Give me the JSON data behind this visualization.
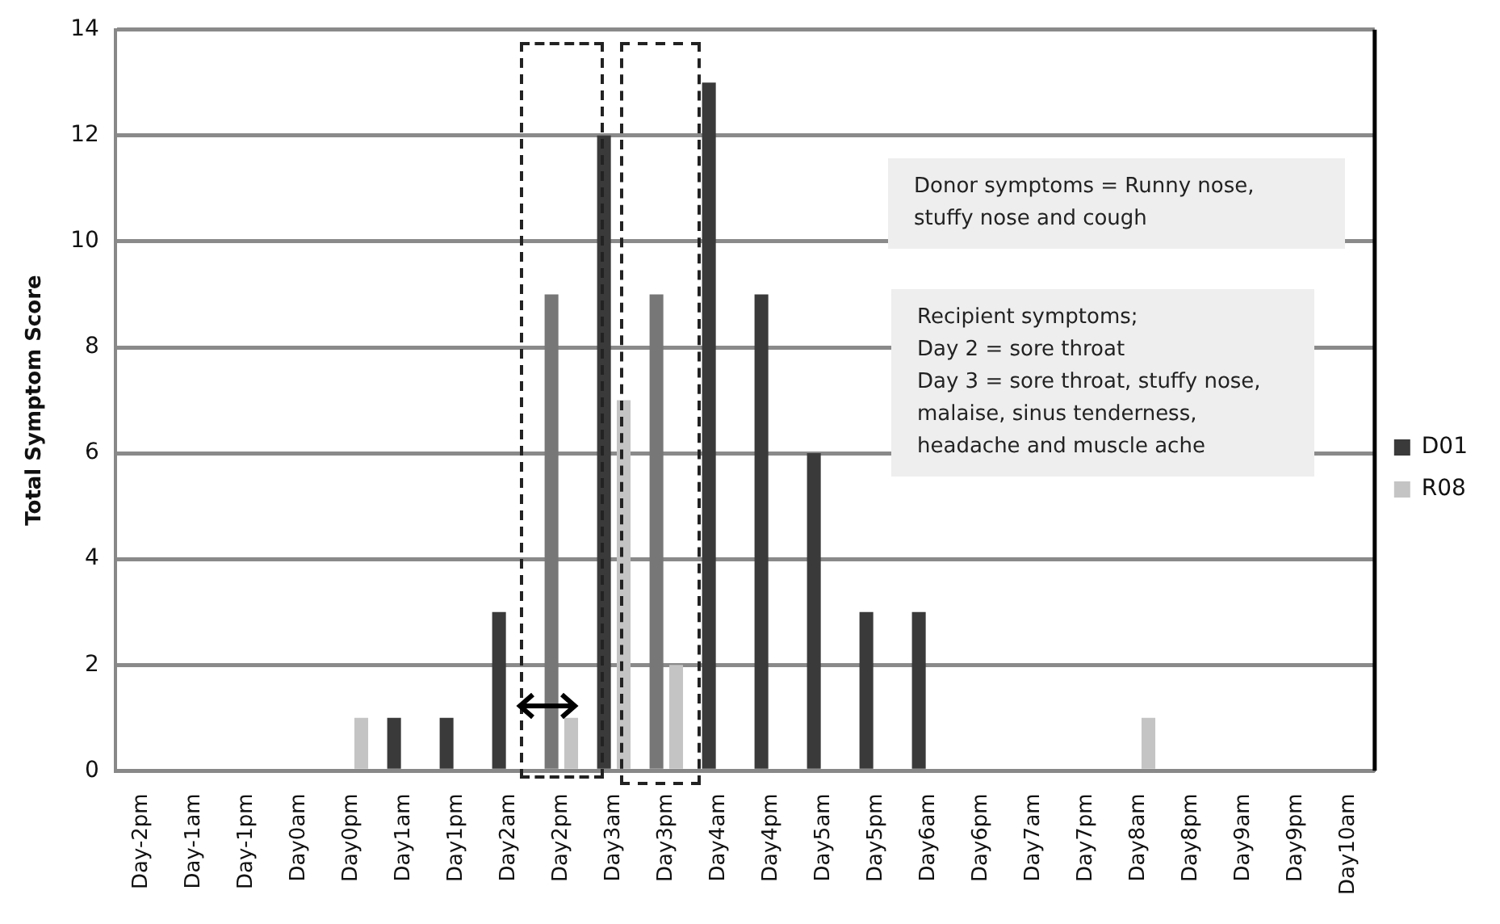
{
  "chart_data": {
    "type": "bar",
    "ylabel": "Total Symptom Score",
    "categories": [
      "Day-2pm",
      "Day-1am",
      "Day-1pm",
      "Day0am",
      "Day0pm",
      "Day1am",
      "Day1pm",
      "Day2am",
      "Day2pm",
      "Day3am",
      "Day3pm",
      "Day4am",
      "Day4pm",
      "Day5am",
      "Day5pm",
      "Day6am",
      "Day6pm",
      "Day7am",
      "Day7pm",
      "Day8am",
      "Day8pm",
      "Day9am",
      "Day9pm",
      "Day10am"
    ],
    "series": [
      {
        "name": "D01",
        "color": "#3a3a3a",
        "colors": [
          "#3a3a3a",
          "#3a3a3a",
          "#3a3a3a",
          "#3a3a3a",
          "#3a3a3a",
          "#3a3a3a",
          "#3a3a3a",
          "#3a3a3a",
          "#777777",
          "#3a3a3a",
          "#777777",
          "#3a3a3a",
          "#3a3a3a",
          "#3a3a3a",
          "#3a3a3a",
          "#3a3a3a",
          "#3a3a3a",
          "#3a3a3a",
          "#3a3a3a",
          "#3a3a3a",
          "#3a3a3a",
          "#3a3a3a",
          "#3a3a3a",
          "#3a3a3a"
        ],
        "values": [
          0,
          0,
          0,
          0,
          0,
          1,
          1,
          3,
          9,
          12,
          9,
          13,
          9,
          6,
          3,
          3,
          0,
          0,
          0,
          0,
          0,
          0,
          0,
          0
        ]
      },
      {
        "name": "R08",
        "color": "#c4c4c4",
        "values": [
          0,
          0,
          0,
          0,
          1,
          0,
          0,
          0,
          1,
          7,
          2,
          0,
          0,
          0,
          0,
          0,
          0,
          0,
          0,
          1,
          0,
          0,
          0,
          0
        ]
      }
    ],
    "ylim": [
      0,
      14
    ],
    "yticks": [
      0,
      2,
      4,
      6,
      8,
      10,
      12,
      14
    ],
    "grid": "y",
    "legend": "right",
    "annotations": [
      "Donor symptoms = Runny nose, stuffy nose and cough",
      "Recipient symptoms;\nDay 2 = sore throat\nDay 3 = sore throat, stuffy nose, malaise, sinus tenderness, headache and muscle ache"
    ]
  }
}
